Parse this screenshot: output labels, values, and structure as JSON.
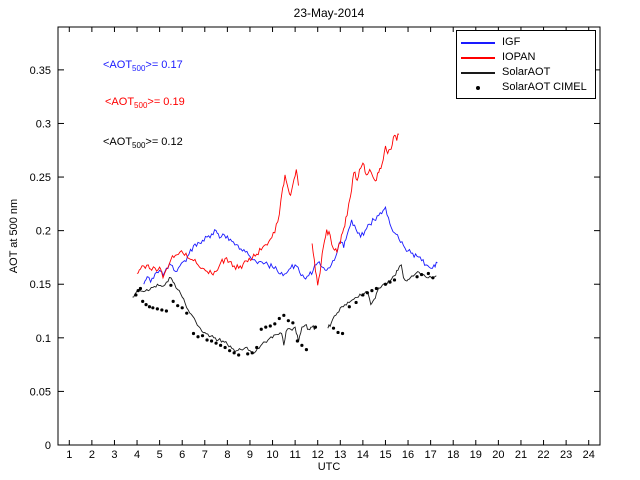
{
  "annotations": {
    "igf": {
      "pre": "<AOT",
      "sub": "500",
      "post": ">= 0.17",
      "color": "#1a1aff"
    },
    "iopan": {
      "pre": "<AOT",
      "sub": "500",
      "post": ">= 0.19",
      "color": "#ff0000"
    },
    "solaraot": {
      "pre": "<AOT",
      "sub": "500",
      "post": ">= 0.12",
      "color": "#000000"
    }
  },
  "chart_data": {
    "type": "line",
    "title": "23-May-2014",
    "xlabel": "UTC",
    "ylabel": "AOT at 500 nm",
    "xlim": [
      0.5,
      24.5
    ],
    "ylim": [
      0,
      0.39
    ],
    "xticks": [
      1,
      2,
      3,
      4,
      5,
      6,
      7,
      8,
      9,
      10,
      11,
      12,
      13,
      14,
      15,
      16,
      17,
      18,
      19,
      20,
      21,
      22,
      23,
      24
    ],
    "yticks": [
      0,
      0.05,
      0.1,
      0.15,
      0.2,
      0.25,
      0.3,
      0.35
    ],
    "ytick_labels": [
      "0",
      "0.05",
      "0.1",
      "0.15",
      "0.2",
      "0.25",
      "0.3",
      "0.35"
    ],
    "grid": false,
    "legend_position": "upper right",
    "mean_aot_500": {
      "IGF": 0.17,
      "IOPAN": 0.19,
      "SolarAOT": 0.12
    },
    "series": [
      {
        "name": "IGF",
        "type": "line",
        "color": "#1a1aff",
        "noise": 0.0028,
        "segments": [
          [
            [
              4.3,
              0.15
            ],
            [
              4.45,
              0.157
            ],
            [
              4.6,
              0.152
            ],
            [
              4.8,
              0.16
            ],
            [
              5.0,
              0.163
            ],
            [
              5.15,
              0.158
            ],
            [
              5.3,
              0.165
            ],
            [
              5.5,
              0.168
            ],
            [
              5.7,
              0.162
            ],
            [
              5.9,
              0.167
            ],
            [
              6.1,
              0.172
            ],
            [
              6.3,
              0.178
            ],
            [
              6.5,
              0.186
            ],
            [
              6.7,
              0.189
            ],
            [
              6.9,
              0.191
            ],
            [
              7.1,
              0.194
            ],
            [
              7.3,
              0.197
            ],
            [
              7.5,
              0.2
            ],
            [
              7.65,
              0.193
            ],
            [
              7.8,
              0.197
            ],
            [
              8.0,
              0.195
            ],
            [
              8.2,
              0.19
            ],
            [
              8.4,
              0.187
            ],
            [
              8.6,
              0.183
            ],
            [
              8.8,
              0.18
            ],
            [
              9.0,
              0.176
            ],
            [
              9.2,
              0.173
            ],
            [
              9.4,
              0.171
            ],
            [
              9.6,
              0.169
            ],
            [
              9.8,
              0.168
            ],
            [
              10.0,
              0.166
            ],
            [
              10.2,
              0.163
            ],
            [
              10.4,
              0.161
            ],
            [
              10.6,
              0.16
            ],
            [
              10.8,
              0.165
            ],
            [
              11.0,
              0.168
            ],
            [
              11.2,
              0.161
            ],
            [
              11.4,
              0.156
            ],
            [
              11.6,
              0.158
            ],
            [
              11.8,
              0.163
            ],
            [
              12.0,
              0.17
            ],
            [
              12.2,
              0.166
            ],
            [
              12.4,
              0.163
            ],
            [
              12.6,
              0.168
            ],
            [
              12.8,
              0.176
            ],
            [
              13.0,
              0.19
            ],
            [
              13.15,
              0.184
            ],
            [
              13.3,
              0.196
            ],
            [
              13.5,
              0.21
            ],
            [
              13.7,
              0.201
            ],
            [
              13.9,
              0.194
            ],
            [
              14.1,
              0.2
            ],
            [
              14.3,
              0.206
            ],
            [
              14.5,
              0.21
            ],
            [
              14.7,
              0.214
            ],
            [
              14.9,
              0.219
            ],
            [
              15.0,
              0.222
            ],
            [
              15.2,
              0.206
            ],
            [
              15.4,
              0.198
            ],
            [
              15.6,
              0.192
            ],
            [
              15.8,
              0.186
            ],
            [
              16.0,
              0.181
            ],
            [
              16.2,
              0.179
            ],
            [
              16.4,
              0.176
            ],
            [
              16.6,
              0.172
            ],
            [
              16.8,
              0.168
            ],
            [
              17.0,
              0.165
            ],
            [
              17.15,
              0.168
            ],
            [
              17.3,
              0.17
            ]
          ]
        ]
      },
      {
        "name": "IOPAN",
        "type": "line",
        "color": "#ff0000",
        "noise": 0.0032,
        "segments": [
          [
            [
              4.0,
              0.16
            ],
            [
              4.15,
              0.164
            ],
            [
              4.3,
              0.167
            ],
            [
              4.5,
              0.168
            ],
            [
              4.65,
              0.163
            ],
            [
              4.8,
              0.165
            ],
            [
              5.0,
              0.166
            ],
            [
              5.15,
              0.156
            ],
            [
              5.3,
              0.164
            ],
            [
              5.5,
              0.173
            ],
            [
              5.7,
              0.177
            ],
            [
              5.9,
              0.18
            ],
            [
              6.1,
              0.177
            ],
            [
              6.3,
              0.174
            ],
            [
              6.5,
              0.172
            ],
            [
              6.7,
              0.168
            ],
            [
              6.9,
              0.165
            ],
            [
              7.1,
              0.162
            ],
            [
              7.3,
              0.16
            ],
            [
              7.5,
              0.162
            ],
            [
              7.7,
              0.17
            ],
            [
              7.9,
              0.174
            ],
            [
              8.1,
              0.171
            ],
            [
              8.3,
              0.167
            ],
            [
              8.5,
              0.165
            ],
            [
              8.7,
              0.169
            ],
            [
              8.9,
              0.171
            ],
            [
              9.1,
              0.174
            ],
            [
              9.3,
              0.178
            ],
            [
              9.5,
              0.182
            ],
            [
              9.7,
              0.187
            ],
            [
              9.9,
              0.192
            ],
            [
              10.1,
              0.198
            ],
            [
              10.3,
              0.215
            ],
            [
              10.45,
              0.24
            ],
            [
              10.55,
              0.252
            ],
            [
              10.65,
              0.243
            ],
            [
              10.8,
              0.233
            ],
            [
              10.95,
              0.248
            ],
            [
              11.05,
              0.257
            ],
            [
              11.15,
              0.242
            ]
          ],
          [
            [
              11.75,
              0.188
            ],
            [
              11.9,
              0.162
            ],
            [
              12.0,
              0.149
            ],
            [
              12.1,
              0.16
            ],
            [
              12.25,
              0.185
            ],
            [
              12.4,
              0.201
            ],
            [
              12.55,
              0.196
            ],
            [
              12.7,
              0.183
            ],
            [
              12.85,
              0.18
            ],
            [
              13.0,
              0.188
            ],
            [
              13.15,
              0.202
            ],
            [
              13.3,
              0.214
            ],
            [
              13.45,
              0.232
            ],
            [
              13.6,
              0.254
            ],
            [
              13.75,
              0.247
            ],
            [
              13.9,
              0.258
            ],
            [
              14.0,
              0.263
            ],
            [
              14.15,
              0.252
            ],
            [
              14.3,
              0.257
            ],
            [
              14.45,
              0.25
            ],
            [
              14.6,
              0.247
            ],
            [
              14.75,
              0.258
            ],
            [
              14.9,
              0.266
            ],
            [
              15.0,
              0.279
            ],
            [
              15.1,
              0.272
            ],
            [
              15.25,
              0.276
            ],
            [
              15.4,
              0.289
            ],
            [
              15.5,
              0.284
            ],
            [
              15.6,
              0.29
            ]
          ]
        ]
      },
      {
        "name": "SolarAOT",
        "type": "line",
        "color": "#1a1a1a",
        "noise": 0.0018,
        "segments": [
          [
            [
              3.8,
              0.138
            ],
            [
              3.95,
              0.142
            ],
            [
              4.1,
              0.145
            ],
            [
              4.3,
              0.143
            ],
            [
              4.5,
              0.144
            ],
            [
              4.7,
              0.147
            ],
            [
              4.9,
              0.15
            ],
            [
              5.1,
              0.148
            ],
            [
              5.3,
              0.152
            ],
            [
              5.5,
              0.156
            ],
            [
              5.65,
              0.151
            ],
            [
              5.8,
              0.145
            ],
            [
              6.0,
              0.138
            ],
            [
              6.2,
              0.128
            ],
            [
              6.4,
              0.122
            ],
            [
              6.6,
              0.115
            ],
            [
              6.8,
              0.109
            ],
            [
              7.0,
              0.105
            ],
            [
              7.2,
              0.101
            ],
            [
              7.4,
              0.1
            ],
            [
              7.6,
              0.098
            ],
            [
              7.8,
              0.097
            ],
            [
              8.0,
              0.094
            ],
            [
              8.2,
              0.09
            ],
            [
              8.4,
              0.088
            ],
            [
              8.6,
              0.089
            ],
            [
              8.8,
              0.091
            ],
            [
              9.0,
              0.088
            ],
            [
              9.2,
              0.086
            ],
            [
              9.4,
              0.09
            ],
            [
              9.6,
              0.096
            ],
            [
              9.8,
              0.098
            ],
            [
              10.0,
              0.1
            ],
            [
              10.2,
              0.103
            ],
            [
              10.4,
              0.104
            ],
            [
              10.5,
              0.093
            ],
            [
              10.6,
              0.106
            ],
            [
              10.8,
              0.108
            ],
            [
              11.0,
              0.11
            ],
            [
              11.15,
              0.096
            ],
            [
              11.3,
              0.11
            ],
            [
              11.45,
              0.112
            ],
            [
              11.6,
              0.108
            ],
            [
              11.75,
              0.11
            ],
            [
              11.9,
              0.109
            ]
          ],
          [
            [
              12.45,
              0.109
            ],
            [
              12.6,
              0.114
            ],
            [
              12.8,
              0.121
            ],
            [
              13.0,
              0.128
            ],
            [
              13.2,
              0.131
            ],
            [
              13.4,
              0.133
            ],
            [
              13.6,
              0.136
            ],
            [
              13.8,
              0.138
            ],
            [
              14.0,
              0.141
            ],
            [
              14.2,
              0.143
            ],
            [
              14.35,
              0.131
            ],
            [
              14.5,
              0.136
            ],
            [
              14.65,
              0.144
            ],
            [
              14.8,
              0.147
            ],
            [
              15.0,
              0.15
            ],
            [
              15.2,
              0.153
            ],
            [
              15.4,
              0.158
            ],
            [
              15.55,
              0.163
            ],
            [
              15.7,
              0.168
            ],
            [
              15.8,
              0.156
            ],
            [
              15.95,
              0.153
            ],
            [
              16.1,
              0.156
            ],
            [
              16.3,
              0.159
            ],
            [
              16.5,
              0.161
            ],
            [
              16.7,
              0.159
            ],
            [
              16.9,
              0.156
            ],
            [
              17.1,
              0.156
            ],
            [
              17.25,
              0.158
            ]
          ]
        ]
      },
      {
        "name": "SolarAOT CIMEL",
        "type": "scatter",
        "color": "#000000",
        "points": [
          [
            3.95,
            0.14
          ],
          [
            4.05,
            0.144
          ],
          [
            4.15,
            0.146
          ],
          [
            4.25,
            0.134
          ],
          [
            4.4,
            0.131
          ],
          [
            4.55,
            0.129
          ],
          [
            4.7,
            0.128
          ],
          [
            4.9,
            0.127
          ],
          [
            5.1,
            0.126
          ],
          [
            5.3,
            0.125
          ],
          [
            5.5,
            0.149
          ],
          [
            5.6,
            0.134
          ],
          [
            5.8,
            0.13
          ],
          [
            6.0,
            0.128
          ],
          [
            6.2,
            0.123
          ],
          [
            6.5,
            0.104
          ],
          [
            6.7,
            0.101
          ],
          [
            6.9,
            0.102
          ],
          [
            7.1,
            0.098
          ],
          [
            7.3,
            0.097
          ],
          [
            7.5,
            0.095
          ],
          [
            7.7,
            0.093
          ],
          [
            7.9,
            0.091
          ],
          [
            8.1,
            0.088
          ],
          [
            8.3,
            0.086
          ],
          [
            8.5,
            0.084
          ],
          [
            8.9,
            0.085
          ],
          [
            9.1,
            0.086
          ],
          [
            9.3,
            0.091
          ],
          [
            9.5,
            0.108
          ],
          [
            9.7,
            0.11
          ],
          [
            9.9,
            0.111
          ],
          [
            10.1,
            0.113
          ],
          [
            10.3,
            0.118
          ],
          [
            10.5,
            0.121
          ],
          [
            10.7,
            0.116
          ],
          [
            10.9,
            0.114
          ],
          [
            11.1,
            0.097
          ],
          [
            11.3,
            0.093
          ],
          [
            11.5,
            0.089
          ],
          [
            11.9,
            0.11
          ],
          [
            12.7,
            0.109
          ],
          [
            12.9,
            0.105
          ],
          [
            13.1,
            0.104
          ],
          [
            13.4,
            0.129
          ],
          [
            13.7,
            0.133
          ],
          [
            14.0,
            0.14
          ],
          [
            14.2,
            0.142
          ],
          [
            14.4,
            0.144
          ],
          [
            14.6,
            0.146
          ],
          [
            15.0,
            0.15
          ],
          [
            15.2,
            0.152
          ],
          [
            15.4,
            0.154
          ],
          [
            16.4,
            0.157
          ],
          [
            16.6,
            0.159
          ],
          [
            16.9,
            0.16
          ],
          [
            17.1,
            0.156
          ]
        ]
      }
    ]
  }
}
